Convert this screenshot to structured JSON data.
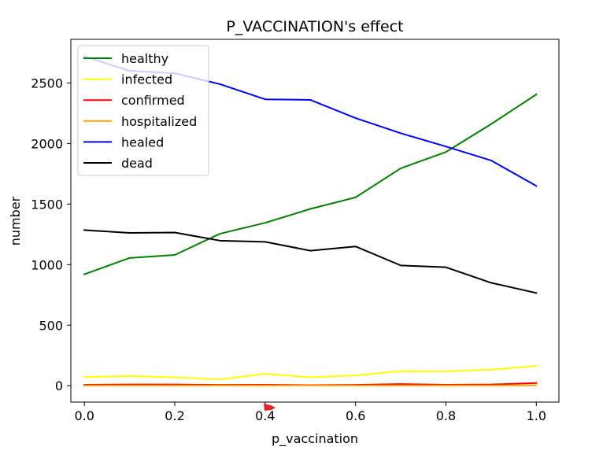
{
  "chart_data": {
    "type": "line",
    "title": "P_VACCINATION's effect",
    "xlabel": "p_vaccination",
    "ylabel": "number",
    "xlim": [
      -0.03,
      1.05
    ],
    "ylim": [
      -135,
      2860
    ],
    "xticks": [
      0.0,
      0.2,
      0.4,
      0.6,
      0.8,
      1.0
    ],
    "xtick_labels": [
      "0.0",
      "0.2",
      "0.4",
      "0.6",
      "0.8",
      "1.0"
    ],
    "yticks": [
      0,
      500,
      1000,
      1500,
      2000,
      2500
    ],
    "ytick_labels": [
      "0",
      "500",
      "1000",
      "1500",
      "2000",
      "2500"
    ],
    "grid": false,
    "legend_position": "upper-left",
    "x": [
      0.0,
      0.1,
      0.2,
      0.3,
      0.4,
      0.5,
      0.6,
      0.7,
      0.8,
      0.9,
      1.0
    ],
    "series": [
      {
        "name": "healthy",
        "color": "#008000",
        "values": [
          920,
          1055,
          1080,
          1255,
          1345,
          1460,
          1555,
          1795,
          1930,
          2160,
          2405
        ]
      },
      {
        "name": "infected",
        "color": "#ffff00",
        "values": [
          72,
          80,
          70,
          52,
          98,
          70,
          85,
          120,
          118,
          133,
          163
        ]
      },
      {
        "name": "confirmed",
        "color": "#ff0000",
        "values": [
          8,
          10,
          10,
          7,
          8,
          5,
          7,
          14,
          8,
          10,
          22
        ]
      },
      {
        "name": "hospitalized",
        "color": "#ffa500",
        "values": [
          2,
          2,
          2,
          2,
          2,
          2,
          2,
          2,
          2,
          2,
          3
        ]
      },
      {
        "name": "healed",
        "color": "#0000ff",
        "values": [
          2720,
          2600,
          2580,
          2490,
          2365,
          2360,
          2210,
          2085,
          1975,
          1860,
          1650
        ]
      },
      {
        "name": "dead",
        "color": "#000000",
        "values": [
          1285,
          1262,
          1265,
          1198,
          1188,
          1115,
          1150,
          993,
          978,
          850,
          766
        ]
      }
    ]
  }
}
